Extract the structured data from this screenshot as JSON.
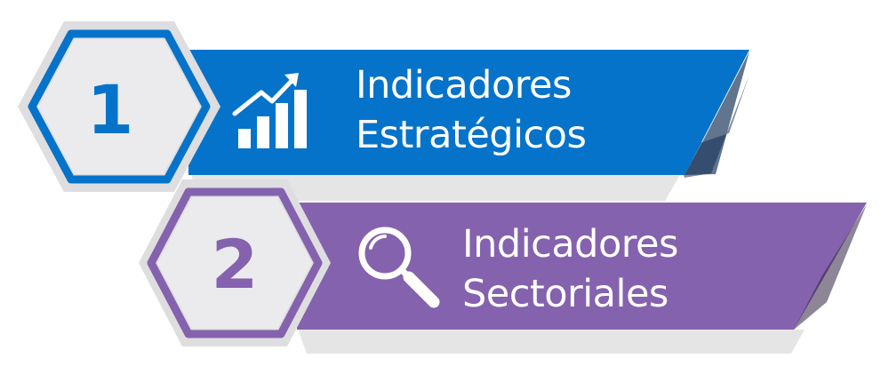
{
  "colors": {
    "blue": "#0573c9",
    "purple": "#8462ad",
    "hex_outer": "#e3e3e5",
    "hex_inner": "#ebebed",
    "text": "#ffffff"
  },
  "items": [
    {
      "number": "1",
      "title_line_1": "Indicadores",
      "title_line_2": "Estratégicos",
      "icon": "bar-chart-growth-icon",
      "color": "#0573c9"
    },
    {
      "number": "2",
      "title_line_1": "Indicadores",
      "title_line_2": "Sectoriales",
      "icon": "magnifying-glass-icon",
      "color": "#8462ad"
    }
  ]
}
